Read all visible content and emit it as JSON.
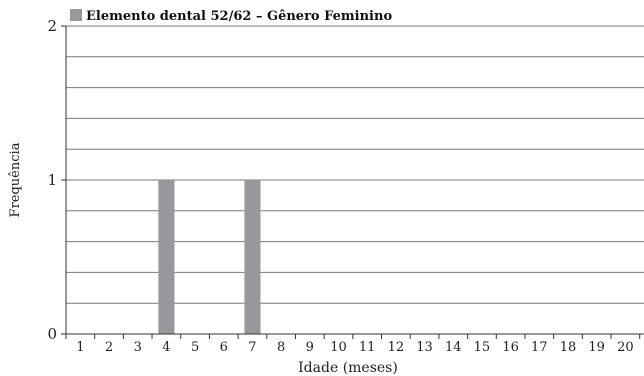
{
  "colors": {
    "bar": "#98989C",
    "grid": "#7a7a7a",
    "axis": "#333333",
    "text": "#222222"
  },
  "chart_data": {
    "type": "bar",
    "legend": {
      "label": "Elemento dental 52/62 – Gênero Feminino",
      "placement": "top-left"
    },
    "categories": [
      "1",
      "2",
      "3",
      "4",
      "5",
      "6",
      "7",
      "8",
      "9",
      "10",
      "11",
      "12",
      "13",
      "14",
      "15",
      "16",
      "17",
      "18",
      "19",
      "20"
    ],
    "series": [
      {
        "name": "Elemento dental 52/62 – Gênero Feminino",
        "values": [
          0,
          0,
          0,
          1,
          0,
          0,
          1,
          0,
          0,
          0,
          0,
          0,
          0,
          0,
          0,
          0,
          0,
          0,
          0,
          0
        ]
      }
    ],
    "xlabel": "Idade (meses)",
    "ylabel": "Frequência",
    "ylim": [
      0,
      2
    ],
    "yticks": [
      "0",
      "1",
      "2"
    ],
    "minor_grid_step": 0.2,
    "grid": true
  }
}
